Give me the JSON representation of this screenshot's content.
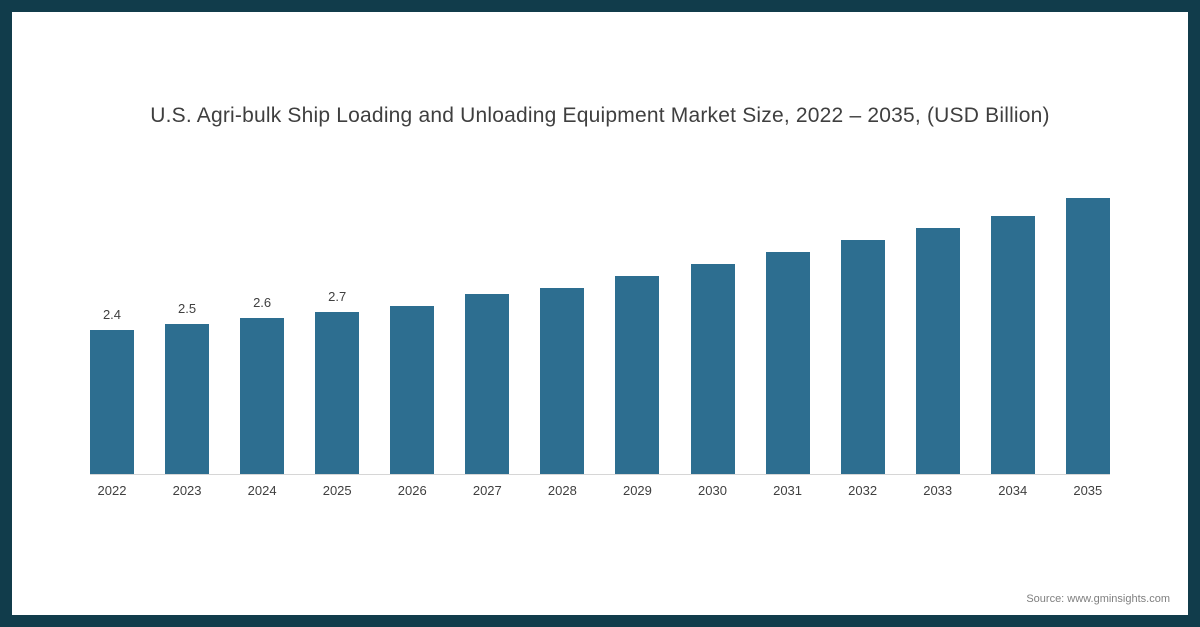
{
  "title": "U.S. Agri-bulk Ship Loading and Unloading Equipment Market Size, 2022 – 2035, (USD Billion)",
  "source": "Source: www.gminsights.com",
  "frame_color": "#113c4b",
  "chart_data": {
    "type": "bar",
    "title": "U.S. Agri-bulk Ship Loading and Unloading Equipment Market Size, 2022 – 2035, (USD Billion)",
    "categories": [
      "2022",
      "2023",
      "2024",
      "2025",
      "2026",
      "2027",
      "2028",
      "2029",
      "2030",
      "2031",
      "2032",
      "2033",
      "2034",
      "2035"
    ],
    "values": [
      2.4,
      2.5,
      2.6,
      2.7,
      2.8,
      3.0,
      3.1,
      3.3,
      3.5,
      3.7,
      3.9,
      4.1,
      4.3,
      4.6
    ],
    "data_labels": [
      "2.4",
      "2.5",
      "2.6",
      "2.7",
      "",
      "",
      "",
      "",
      "",
      "",
      "",
      "",
      "",
      ""
    ],
    "bar_color": "#2d6e90",
    "xlabel": "",
    "ylabel": "",
    "ylim": [
      0,
      5
    ],
    "grid": false,
    "legend": "none"
  }
}
